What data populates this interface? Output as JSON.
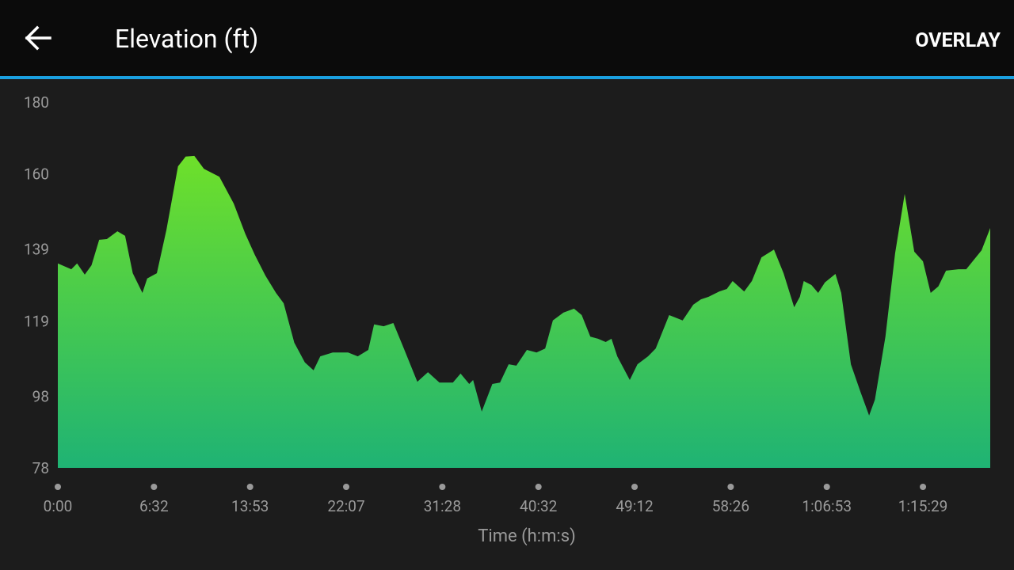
{
  "header": {
    "title": "Elevation (ft)",
    "action": "OVERLAY"
  },
  "chart_data": {
    "type": "area",
    "xlabel": "Time (h:m:s)",
    "xlim": [
      0,
      9.7
    ],
    "xticks": [
      {
        "value": 0,
        "label": "0:00"
      },
      {
        "value": 1,
        "label": "6:32"
      },
      {
        "value": 2,
        "label": "13:53"
      },
      {
        "value": 3,
        "label": "22:07"
      },
      {
        "value": 4,
        "label": "31:28"
      },
      {
        "value": 5,
        "label": "40:32"
      },
      {
        "value": 6,
        "label": "49:12"
      },
      {
        "value": 7,
        "label": "58:26"
      },
      {
        "value": 8,
        "label": "1:06:53"
      },
      {
        "value": 9,
        "label": "1:15:29"
      }
    ],
    "ylim": [
      78,
      180
    ],
    "yticks": [
      78,
      98,
      119,
      139,
      160,
      180
    ],
    "color": [
      "#6ee02a",
      "#1fb374"
    ],
    "x": [
      0,
      0.14,
      0.2,
      0.28,
      0.35,
      0.43,
      0.51,
      0.62,
      0.7,
      0.78,
      0.88,
      0.93,
      1.03,
      1.13,
      1.25,
      1.33,
      1.42,
      1.52,
      1.68,
      1.83,
      1.95,
      2.05,
      2.16,
      2.27,
      2.35,
      2.46,
      2.57,
      2.66,
      2.73,
      2.86,
      3.02,
      3.12,
      3.23,
      3.29,
      3.39,
      3.49,
      3.6,
      3.74,
      3.85,
      3.97,
      4.11,
      4.19,
      4.28,
      4.32,
      4.41,
      4.52,
      4.6,
      4.69,
      4.77,
      4.88,
      4.98,
      5.07,
      5.15,
      5.26,
      5.37,
      5.45,
      5.54,
      5.62,
      5.7,
      5.76,
      5.82,
      5.95,
      6.03,
      6.14,
      6.22,
      6.36,
      6.5,
      6.61,
      6.69,
      6.77,
      6.88,
      6.96,
      7.02,
      7.14,
      7.22,
      7.32,
      7.45,
      7.55,
      7.66,
      7.72,
      7.76,
      7.84,
      7.91,
      7.98,
      8.09,
      8.15,
      8.25,
      8.35,
      8.44,
      8.5,
      8.61,
      8.71,
      8.81,
      8.91,
      9.0,
      9.08,
      9.16,
      9.24,
      9.37,
      9.45,
      9.61,
      9.7
    ],
    "values": [
      135,
      133.4,
      135,
      131.9,
      134.5,
      141.6,
      141.8,
      144,
      142.7,
      132.3,
      126.8,
      130.8,
      132.3,
      144.4,
      162.1,
      164.8,
      165,
      161.4,
      159.2,
      151.7,
      143.3,
      137.4,
      131.6,
      126.8,
      123.9,
      112.9,
      107.4,
      105.2,
      109.1,
      110.2,
      110.2,
      109.1,
      110.9,
      118,
      117.5,
      118.4,
      111.3,
      102,
      104.7,
      101.8,
      101.8,
      104.3,
      101.4,
      102.5,
      93.7,
      101.4,
      101.8,
      106.9,
      106.5,
      110.9,
      110.2,
      111.3,
      119.1,
      121.3,
      122.4,
      120.6,
      114.6,
      114,
      113.1,
      114,
      109.1,
      102.5,
      106.9,
      109.1,
      111.3,
      120.6,
      119.1,
      123.5,
      125,
      125.7,
      127.2,
      127.9,
      130.1,
      127.2,
      130.1,
      136.7,
      138.9,
      132.3,
      122.8,
      125.7,
      130.1,
      129,
      126.8,
      129.7,
      132.1,
      126.8,
      106.9,
      99.2,
      92.6,
      97,
      114.6,
      137.8,
      154.4,
      138.3,
      135.6,
      126.8,
      128.6,
      133,
      133.4,
      133.4,
      138.7,
      144.9
    ]
  }
}
